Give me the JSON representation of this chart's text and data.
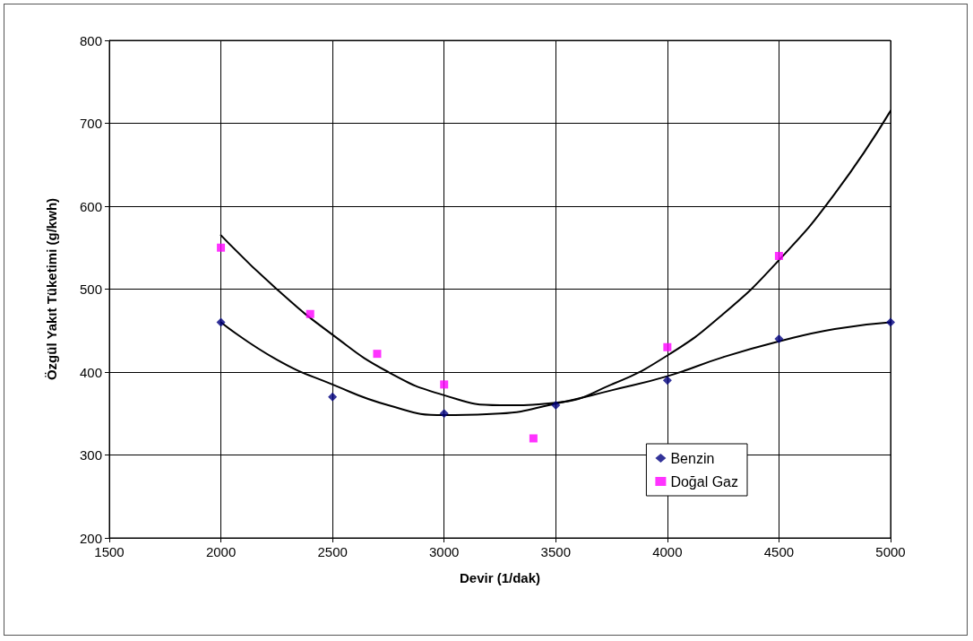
{
  "chart_data": {
    "type": "scatter",
    "xlabel": "Devir (1/dak)",
    "ylabel": "Özgül Yakıt Tüketimi (g/kwh)",
    "xlim": [
      1500,
      5000
    ],
    "xticks": [
      1500,
      2000,
      2500,
      3000,
      3500,
      4000,
      4500,
      5000
    ],
    "ylim": [
      200,
      800
    ],
    "yticks": [
      200,
      300,
      400,
      500,
      600,
      700,
      800
    ],
    "grid": true,
    "legend": "bottom right",
    "series": [
      {
        "name": "Benzin",
        "marker": "diamond",
        "color": "#000080",
        "x": [
          2000,
          2500,
          3000,
          3500,
          4000,
          4500,
          5000
        ],
        "values": [
          460,
          370,
          350,
          360,
          390,
          440,
          460
        ]
      },
      {
        "name": "Doğal Gaz",
        "marker": "square",
        "color": "#ff00ff",
        "x": [
          2000,
          2400,
          2700,
          3000,
          3400,
          4000,
          4500
        ],
        "values": [
          550,
          470,
          422,
          385,
          320,
          430,
          540
        ]
      },
      {
        "type": "line",
        "marker": "none",
        "color": "#000000",
        "x": [
          2000,
          2250,
          2500,
          2750,
          3000,
          3250,
          3500,
          3750,
          4000,
          4250,
          4500,
          4750,
          5000
        ],
        "values": [
          460,
          415,
          385,
          360,
          348,
          350,
          362,
          378,
          395,
          418,
          437,
          452,
          460
        ]
      },
      {
        "type": "line",
        "marker": "none",
        "color": "#000000",
        "x": [
          2000,
          2250,
          2500,
          2750,
          3000,
          3250,
          3500,
          3750,
          4000,
          4250,
          4500,
          4750,
          5000
        ],
        "values": [
          565,
          500,
          445,
          400,
          372,
          360,
          363,
          385,
          420,
          470,
          535,
          615,
          715
        ]
      }
    ]
  }
}
